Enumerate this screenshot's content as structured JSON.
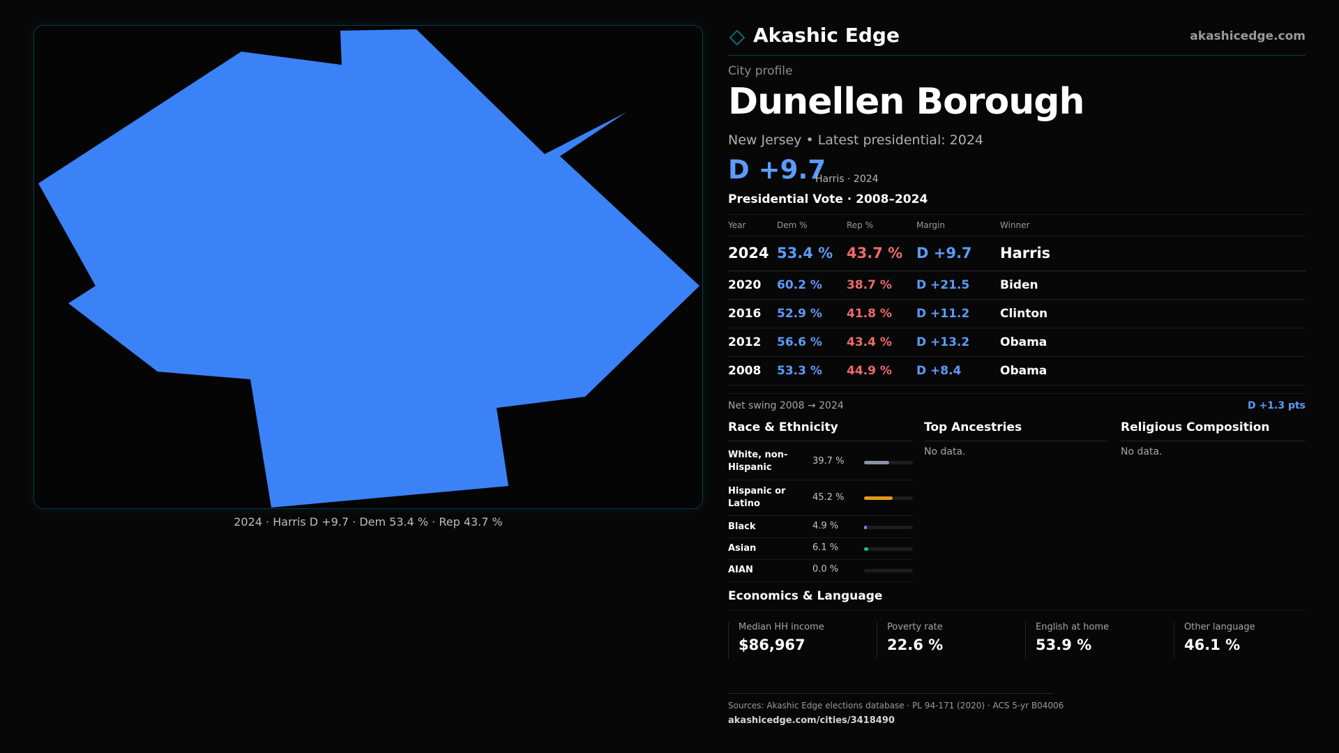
{
  "map": {
    "caption": "2024 · Harris D +9.7 · Dem 53.4 % · Rep 43.7 %",
    "fill_color": "#3b82f6",
    "border_color": "#0d3a40"
  },
  "header": {
    "brand_name": "Akashic Edge",
    "brand_url": "akashicedge.com",
    "brand_icon": "diamond-outline-icon",
    "accent_color": "#0e5960"
  },
  "profile": {
    "kicker": "City profile",
    "city_name": "Dunellen Borough",
    "subtitle": "New Jersey • Latest presidential: 2024",
    "headline_margin": "D +9.7",
    "headline_note": "Harris · 2024"
  },
  "presidential": {
    "title": "Presidential Vote · 2008–2024",
    "columns": [
      "Year",
      "Dem %",
      "Rep %",
      "Margin",
      "Winner"
    ],
    "rows": [
      {
        "year": "2024",
        "dem": "53.4 %",
        "rep": "43.7 %",
        "margin": "D +9.7",
        "winner": "Harris"
      },
      {
        "year": "2020",
        "dem": "60.2 %",
        "rep": "38.7 %",
        "margin": "D +21.5",
        "winner": "Biden"
      },
      {
        "year": "2016",
        "dem": "52.9 %",
        "rep": "41.8 %",
        "margin": "D +11.2",
        "winner": "Clinton"
      },
      {
        "year": "2012",
        "dem": "56.6 %",
        "rep": "43.4 %",
        "margin": "D +13.2",
        "winner": "Obama"
      },
      {
        "year": "2008",
        "dem": "53.3 %",
        "rep": "44.9 %",
        "margin": "D +8.4",
        "winner": "Obama"
      }
    ],
    "dem_color": "#5b9cf8",
    "rep_color": "#f06a6a",
    "swing_label": "Net swing 2008 → 2024",
    "swing_value": "D +1.3 pts"
  },
  "race": {
    "title": "Race & Ethnicity",
    "rows": [
      {
        "label": "White, non-Hispanic",
        "pct": "39.7 %",
        "share": 0.397,
        "color": "#8a93a6"
      },
      {
        "label": "Hispanic or Latino",
        "pct": "45.2 %",
        "share": 0.452,
        "color": "#e29a1a"
      },
      {
        "label": "Black",
        "pct": "4.9 %",
        "share": 0.049,
        "color": "#8b7cf0"
      },
      {
        "label": "Asian",
        "pct": "6.1 %",
        "share": 0.061,
        "color": "#1fbf8a"
      },
      {
        "label": "AIAN",
        "pct": "0.0 %",
        "share": 0.0,
        "color": "#c46ad8"
      }
    ]
  },
  "ancestries": {
    "title": "Top Ancestries",
    "empty_text": "No data."
  },
  "religion": {
    "title": "Religious Composition",
    "empty_text": "No data."
  },
  "economics": {
    "title": "Economics & Language",
    "stats": [
      {
        "label": "Median HH income",
        "value": "$86,967"
      },
      {
        "label": "Poverty rate",
        "value": "22.6 %"
      },
      {
        "label": "English at home",
        "value": "53.9 %"
      },
      {
        "label": "Other language",
        "value": "46.1 %"
      }
    ]
  },
  "footer": {
    "sources": "Sources: Akashic Edge elections database · PL 94-171 (2020) · ACS 5-yr B04006",
    "page_url": "akashicedge.com/cities/3418490"
  }
}
